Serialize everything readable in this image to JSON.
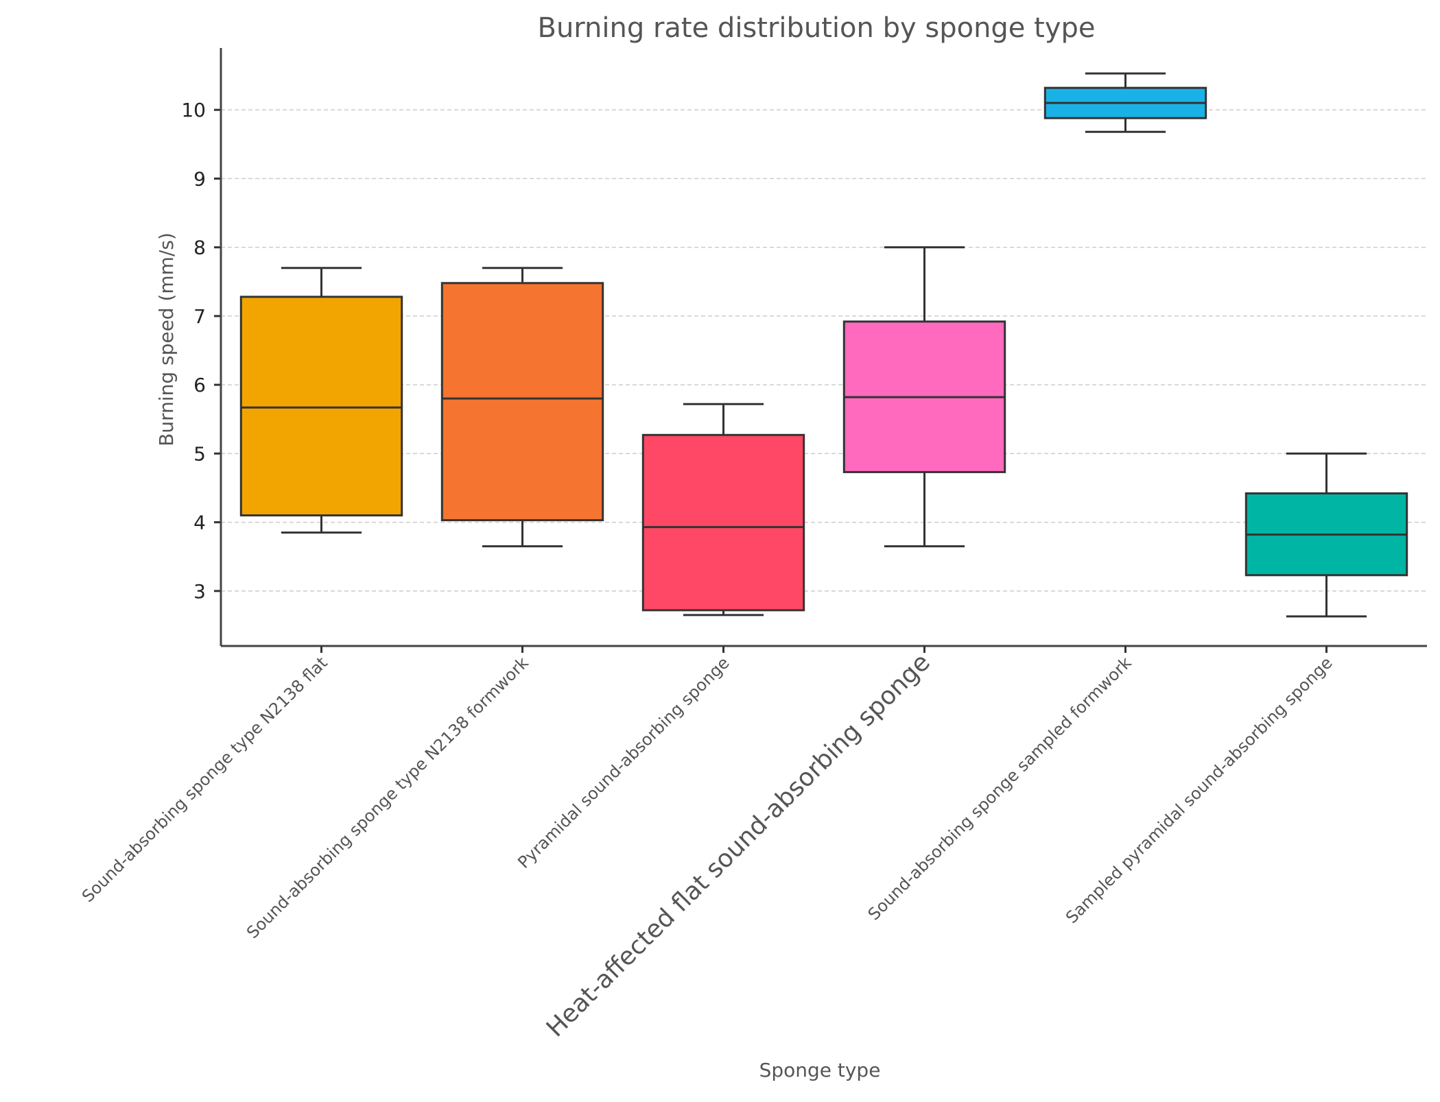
{
  "chart_data": {
    "type": "boxplot",
    "title": "Burning rate distribution by sponge type",
    "xlabel": "Sponge type",
    "ylabel": "Burning speed (mm/s)",
    "ylim": [
      2.2,
      10.9
    ],
    "yticks": [
      3,
      4,
      5,
      6,
      7,
      8,
      9,
      10
    ],
    "grid": true,
    "categories": [
      "Sound-absorbing sponge type N2138 flat",
      "Sound-absorbing sponge type N2138 formwork",
      "Pyramidal sound-absorbing sponge",
      "Heat-affected flat sound-absorbing sponge",
      "Sound-absorbing sponge sampled formwork",
      "Sampled pyramidal sound-absorbing sponge"
    ],
    "boxes": [
      {
        "category": "Sound-absorbing sponge type N2138 flat",
        "whisker_low": 3.85,
        "q1": 4.1,
        "median": 5.67,
        "q3": 7.28,
        "whisker_high": 7.7,
        "color": "#F2A500"
      },
      {
        "category": "Sound-absorbing sponge type N2138 formwork",
        "whisker_low": 3.65,
        "q1": 4.03,
        "median": 5.8,
        "q3": 7.48,
        "whisker_high": 7.7,
        "color": "#F47430"
      },
      {
        "category": "Pyramidal sound-absorbing sponge",
        "whisker_low": 2.65,
        "q1": 2.72,
        "median": 3.93,
        "q3": 5.27,
        "whisker_high": 5.72,
        "color": "#FF4866"
      },
      {
        "category": "Heat-affected flat sound-absorbing sponge",
        "whisker_low": 3.65,
        "q1": 4.73,
        "median": 5.82,
        "q3": 6.92,
        "whisker_high": 8.0,
        "color": "#FF69BE"
      },
      {
        "category": "Sound-absorbing sponge sampled formwork",
        "whisker_low": 9.68,
        "q1": 9.88,
        "median": 10.1,
        "q3": 10.32,
        "whisker_high": 10.53,
        "color": "#1AB2E6"
      },
      {
        "category": "Sampled pyramidal sound-absorbing sponge",
        "whisker_low": 2.63,
        "q1": 3.23,
        "median": 3.82,
        "q3": 4.42,
        "whisker_high": 5.0,
        "color": "#00B5A4"
      }
    ]
  }
}
